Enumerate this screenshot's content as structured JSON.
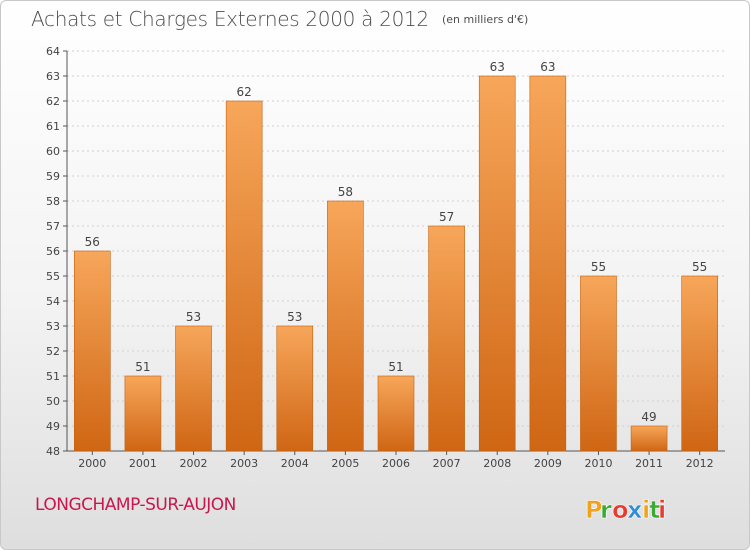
{
  "header": {
    "title": "Achats et Charges Externes 2000 à 2012",
    "unit": "(en milliers d'€)"
  },
  "footer": {
    "commune": "LONGCHAMP-SUR-AUJON"
  },
  "logo": {
    "text": "Proxiti",
    "letter_colors": [
      "#f0a21a",
      "#3aaa35",
      "#e63b2e",
      "#2f8fd6",
      "#f0a21a",
      "#3aaa35",
      "#e63b2e"
    ]
  },
  "colors": {
    "bar_light": "#f7a65a",
    "bar_dark": "#cf6614",
    "axis": "#555555",
    "grid": "#d0d0d0"
  },
  "chart_data": {
    "type": "bar",
    "title": "Achats et Charges Externes 2000 à 2012",
    "subtitle": "(en milliers d'€)",
    "categories": [
      "2000",
      "2001",
      "2002",
      "2003",
      "2004",
      "2005",
      "2006",
      "2007",
      "2008",
      "2009",
      "2010",
      "2011",
      "2012"
    ],
    "values": [
      56,
      51,
      53,
      62,
      53,
      58,
      51,
      57,
      63,
      63,
      55,
      49,
      55
    ],
    "ylim": [
      48,
      64
    ],
    "yticks": [
      48,
      49,
      50,
      51,
      52,
      53,
      54,
      55,
      56,
      57,
      58,
      59,
      60,
      61,
      62,
      63,
      64
    ],
    "xlabel": "",
    "ylabel": "",
    "grid": true,
    "data_labels": true
  }
}
